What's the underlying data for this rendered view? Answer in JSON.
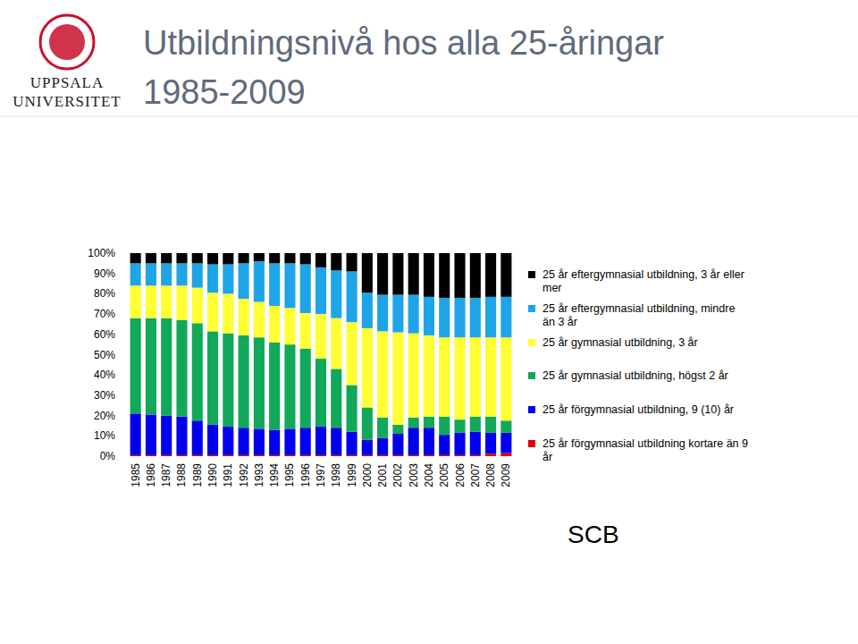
{
  "logo": {
    "lines": [
      "UPPSALA",
      "UNIVERSITET"
    ]
  },
  "chart_data": {
    "type": "bar",
    "stacked": true,
    "grid": false,
    "legend": "right",
    "title": "Utbildningsnivå hos alla 25-åringar",
    "subtitle": "1985-2009",
    "annotations": [
      "SCB"
    ],
    "categories": [
      "1985",
      "1986",
      "1987",
      "1988",
      "1989",
      "1990",
      "1991",
      "1992",
      "1993",
      "1994",
      "1995",
      "1996",
      "1997",
      "1998",
      "1999",
      "2000",
      "2001",
      "2002",
      "2003",
      "2004",
      "2005",
      "2006",
      "2007",
      "2008",
      "2009"
    ],
    "ylim": [
      0,
      100
    ],
    "yticks": [
      {
        "value": 0,
        "label": "0%"
      },
      {
        "value": 10,
        "label": "10%"
      },
      {
        "value": 20,
        "label": "20%"
      },
      {
        "value": 30,
        "label": "30%"
      },
      {
        "value": 40,
        "label": "40%"
      },
      {
        "value": 50,
        "label": "50%"
      },
      {
        "value": 60,
        "label": "60%"
      },
      {
        "value": 70,
        "label": "70%"
      },
      {
        "value": 80,
        "label": "80%"
      },
      {
        "value": 90,
        "label": "90%"
      },
      {
        "value": 100,
        "label": "100%"
      }
    ],
    "series": [
      {
        "name": "25 år förgymnasial utbildning kortare än 9 år",
        "color": "#e00000",
        "values": [
          0.5,
          0.5,
          0.5,
          0.5,
          0.5,
          0.5,
          0.5,
          0.5,
          0.5,
          0.5,
          0.5,
          0.5,
          0.5,
          0.5,
          0.5,
          0.5,
          0.5,
          0.5,
          0.5,
          0.5,
          0.5,
          0.5,
          0.5,
          1.2,
          1.5
        ]
      },
      {
        "name": "25 år förgymnasial utbildning, 9 (10) år",
        "color": "#0000ee",
        "values": [
          20.5,
          20,
          19.5,
          19,
          17,
          15,
          14,
          13.5,
          13,
          12.5,
          13,
          13.5,
          14,
          13.5,
          11.5,
          7.5,
          8.5,
          10.5,
          13.5,
          13.5,
          10,
          11,
          11.5,
          10.3,
          10
        ]
      },
      {
        "name": "25 år gymnasial utbildning, högst 2 år",
        "color": "#11a85a",
        "values": [
          47,
          47.5,
          48,
          47.5,
          48,
          46,
          46,
          45.5,
          45,
          43,
          41.5,
          39,
          33.5,
          29,
          23,
          16,
          10,
          4.5,
          5,
          5.5,
          9,
          6.5,
          7.5,
          8,
          6
        ]
      },
      {
        "name": "25 år gymnasial utbildning, 3 år",
        "color": "#ffff33",
        "values": [
          16,
          16,
          16,
          17,
          17.5,
          19,
          19.5,
          18,
          17.5,
          18,
          18,
          17.5,
          22,
          25,
          31,
          39,
          42.5,
          45.5,
          41.5,
          40,
          39,
          40.5,
          39,
          39,
          41
        ]
      },
      {
        "name": "25 år eftergymnasial utbildning, mindre än 3 år",
        "color": "#20a4e8",
        "values": [
          11,
          11,
          11,
          11,
          12,
          14,
          14.5,
          17.5,
          20,
          21,
          22,
          24,
          23,
          23.5,
          25,
          17.5,
          18,
          18.5,
          19,
          19,
          19.5,
          19.5,
          19.5,
          20,
          20
        ]
      },
      {
        "name": "25 år eftergymnasial utbildning, 3 år eller mer",
        "color": "#000000",
        "values": [
          5,
          5,
          5,
          5,
          5,
          5.5,
          5.5,
          5,
          4,
          5,
          5,
          5.5,
          7,
          8.5,
          9,
          19.5,
          20.5,
          20.5,
          20.5,
          21.5,
          22,
          22,
          22,
          21.5,
          21.5
        ]
      }
    ]
  }
}
